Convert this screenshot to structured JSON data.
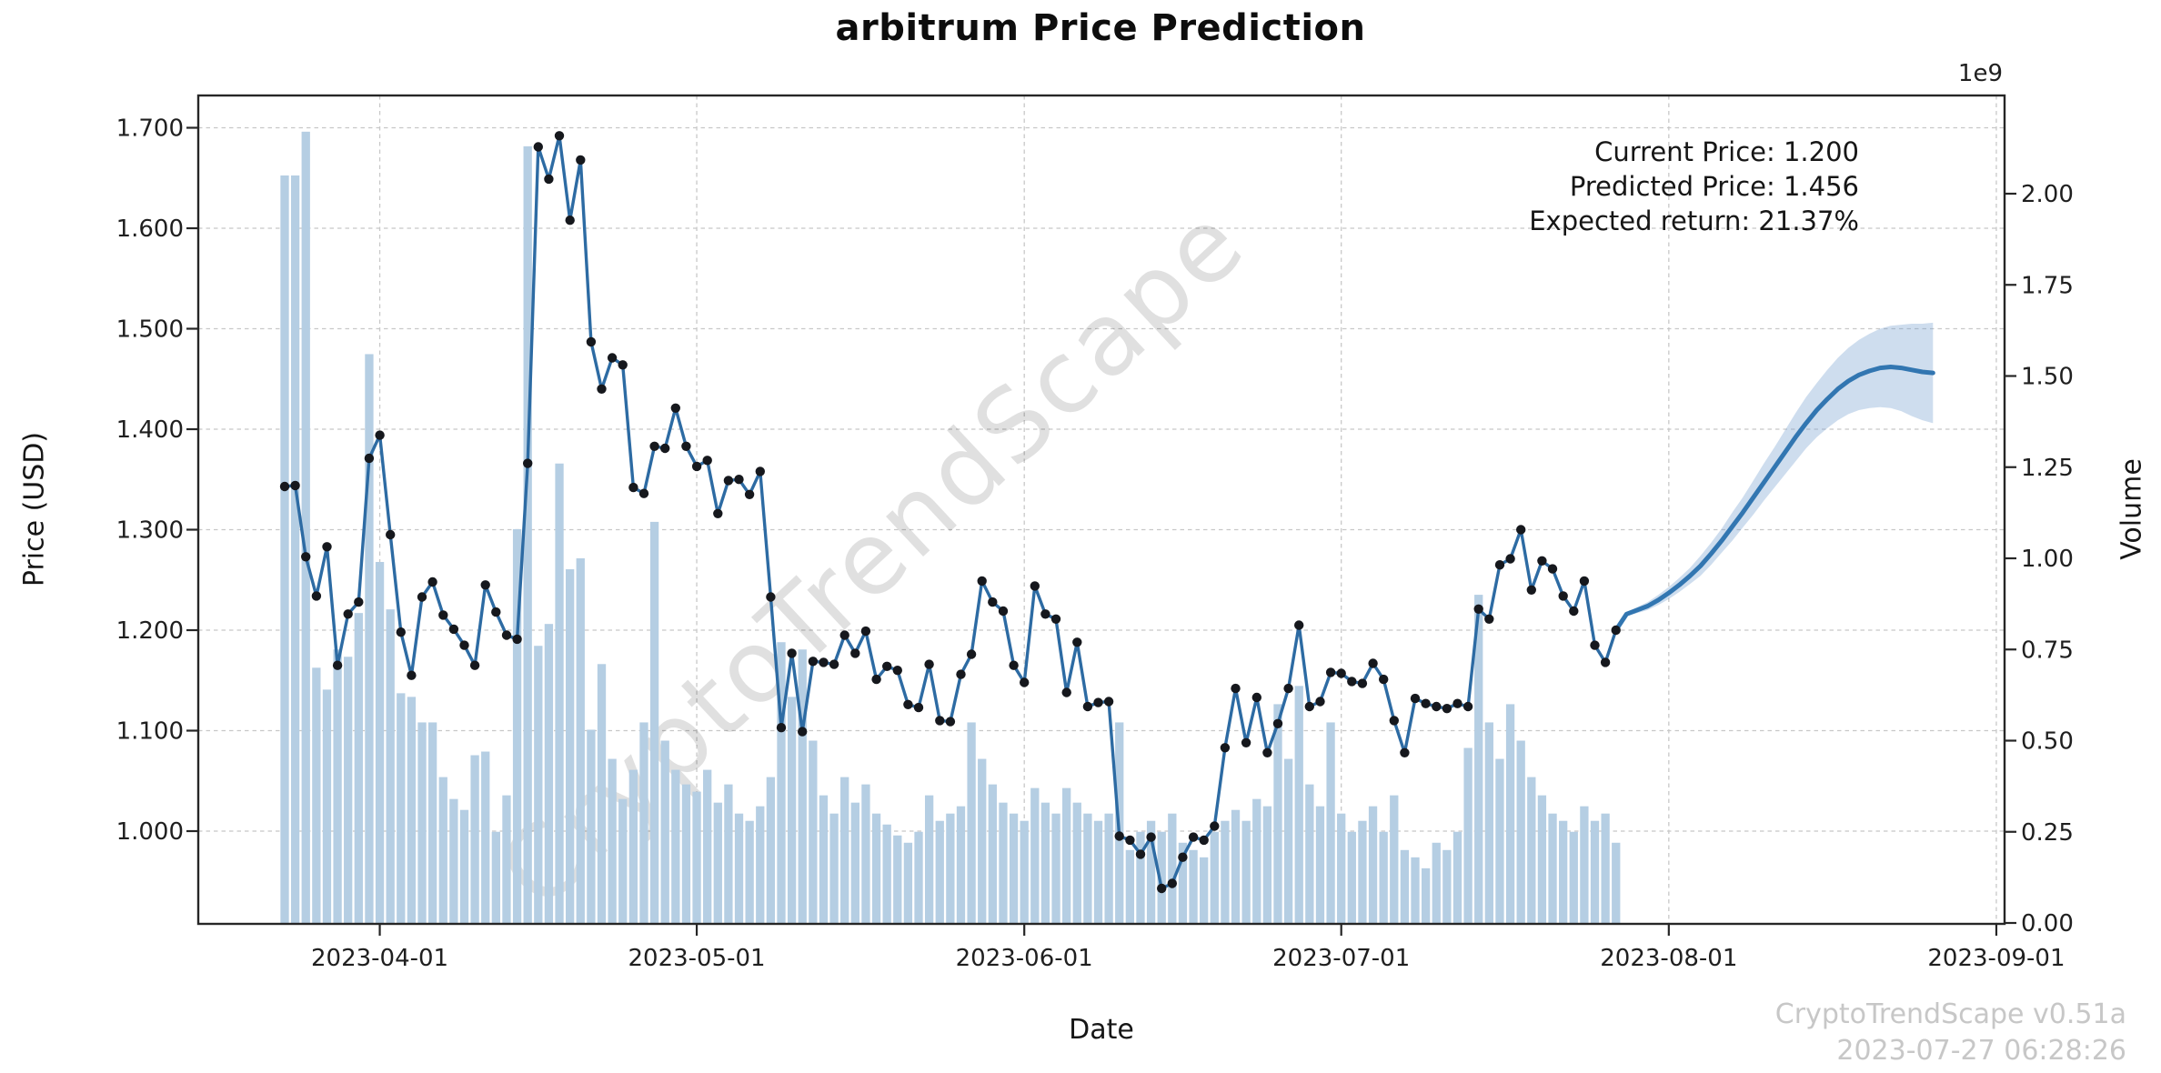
{
  "title": "arbitrum Price Prediction",
  "footer": {
    "line1": "CryptoTrendScape v0.51a",
    "line2": "2023-07-27 06:28:26"
  },
  "colors": {
    "history_line": "#2d6ba3",
    "prediction_line": "#3276b1",
    "marker": "#16181d",
    "volume_bar": "#b5cee3",
    "band_fill": "rgba(114,158,206,0.35)",
    "grid": "#c8c8c8",
    "spine": "#262626",
    "tick_label": "#1f1f1f",
    "footer_text": "#c7c7c7",
    "watermark": "rgba(0,0,0,0.12)"
  },
  "chart_data": {
    "type": "line",
    "title": "arbitrum Price Prediction",
    "xlabel": "Date",
    "ylabel_left": "Price (USD)",
    "ylabel_right": "Volume",
    "right_axis_multiplier": "1e9",
    "grid": true,
    "x_tick_labels": [
      "2023-04-01",
      "2023-05-01",
      "2023-06-01",
      "2023-07-01",
      "2023-08-01",
      "2023-09-01"
    ],
    "x_tick_day_offsets": [
      9,
      39,
      70,
      100,
      131,
      162
    ],
    "y_left_ticks": [
      1.0,
      1.1,
      1.2,
      1.3,
      1.4,
      1.5,
      1.6,
      1.7
    ],
    "y_left_tick_labels": [
      "1.000",
      "1.100",
      "1.200",
      "1.300",
      "1.400",
      "1.500",
      "1.600",
      "1.700"
    ],
    "y_right_ticks_e9": [
      0,
      0.25,
      0.5,
      0.75,
      1.0,
      1.25,
      1.5,
      1.75,
      2.0
    ],
    "y_right_tick_labels": [
      "0.00",
      "0.25",
      "0.50",
      "0.75",
      "1.00",
      "1.25",
      "1.50",
      "1.75",
      "2.00"
    ],
    "price_ylim_implied": [
      0.908,
      1.732
    ],
    "volume_ylim_e9": [
      0,
      2.27
    ],
    "annotations": [
      "Current Price: 1.200",
      "Predicted Price: 1.456",
      "Expected return: 21.37%"
    ],
    "current_price": "1.200",
    "predicted_price": "1.456",
    "expected_return": "21.37%",
    "watermark": "CryptoTrendScape",
    "series": [
      {
        "name": "historical-price",
        "kind": "line+markers",
        "axis": "left",
        "start_date": "2023-03-23",
        "freq": "daily",
        "values": [
          1.343,
          1.344,
          1.273,
          1.234,
          1.283,
          1.165,
          1.216,
          1.228,
          1.371,
          1.394,
          1.295,
          1.198,
          1.155,
          1.233,
          1.248,
          1.215,
          1.201,
          1.185,
          1.165,
          1.245,
          1.218,
          1.195,
          1.191,
          1.366,
          1.681,
          1.649,
          1.692,
          1.608,
          1.668,
          1.487,
          1.44,
          1.471,
          1.464,
          1.342,
          1.336,
          1.383,
          1.381,
          1.421,
          1.383,
          1.363,
          1.369,
          1.316,
          1.349,
          1.35,
          1.335,
          1.358,
          1.233,
          1.103,
          1.177,
          1.099,
          1.169,
          1.168,
          1.166,
          1.195,
          1.177,
          1.199,
          1.151,
          1.164,
          1.16,
          1.126,
          1.123,
          1.166,
          1.11,
          1.109,
          1.156,
          1.176,
          1.249,
          1.228,
          1.219,
          1.165,
          1.148,
          1.244,
          1.216,
          1.211,
          1.138,
          1.188,
          1.124,
          1.128,
          1.129,
          0.995,
          0.991,
          0.977,
          0.994,
          0.943,
          0.948,
          0.974,
          0.994,
          0.991,
          1.005,
          1.083,
          1.142,
          1.088,
          1.133,
          1.078,
          1.107,
          1.142,
          1.205,
          1.124,
          1.129,
          1.158,
          1.157,
          1.149,
          1.147,
          1.167,
          1.151,
          1.11,
          1.078,
          1.132,
          1.127,
          1.124,
          1.122,
          1.127,
          1.124,
          1.221,
          1.211,
          1.265,
          1.271,
          1.3,
          1.24,
          1.269,
          1.261,
          1.234,
          1.219,
          1.249,
          1.185,
          1.168,
          1.2
        ]
      },
      {
        "name": "volume",
        "kind": "bar",
        "axis": "right",
        "unit": "1e9",
        "start_date": "2023-03-23",
        "freq": "daily",
        "values": [
          2.05,
          2.05,
          2.17,
          0.7,
          0.64,
          0.75,
          0.73,
          0.85,
          1.56,
          0.99,
          0.86,
          0.63,
          0.62,
          0.55,
          0.55,
          0.4,
          0.34,
          0.31,
          0.46,
          0.47,
          0.25,
          0.35,
          1.08,
          2.13,
          0.76,
          0.82,
          1.26,
          0.97,
          1.0,
          0.53,
          0.71,
          0.45,
          0.34,
          0.42,
          0.55,
          1.1,
          0.5,
          0.42,
          0.38,
          0.36,
          0.42,
          0.33,
          0.38,
          0.3,
          0.28,
          0.32,
          0.4,
          0.77,
          0.62,
          0.75,
          0.5,
          0.35,
          0.3,
          0.4,
          0.33,
          0.38,
          0.3,
          0.27,
          0.24,
          0.22,
          0.25,
          0.35,
          0.28,
          0.3,
          0.32,
          0.55,
          0.45,
          0.38,
          0.33,
          0.3,
          0.28,
          0.37,
          0.33,
          0.3,
          0.37,
          0.33,
          0.3,
          0.28,
          0.3,
          0.55,
          0.2,
          0.25,
          0.28,
          0.25,
          0.3,
          0.22,
          0.2,
          0.18,
          0.25,
          0.28,
          0.31,
          0.28,
          0.34,
          0.32,
          0.6,
          0.45,
          0.65,
          0.38,
          0.32,
          0.55,
          0.3,
          0.25,
          0.28,
          0.32,
          0.25,
          0.35,
          0.2,
          0.18,
          0.15,
          0.22,
          0.2,
          0.25,
          0.48,
          0.9,
          0.55,
          0.45,
          0.6,
          0.5,
          0.4,
          0.35,
          0.3,
          0.28,
          0.25,
          0.32,
          0.28,
          0.3,
          0.22
        ]
      },
      {
        "name": "predicted-price",
        "kind": "line",
        "axis": "left",
        "start_date": "2023-07-27",
        "freq": "daily",
        "values": [
          1.2,
          1.216,
          1.22,
          1.224,
          1.23,
          1.237,
          1.245,
          1.254,
          1.264,
          1.276,
          1.289,
          1.303,
          1.317,
          1.332,
          1.347,
          1.362,
          1.377,
          1.392,
          1.406,
          1.419,
          1.43,
          1.44,
          1.448,
          1.454,
          1.458,
          1.461,
          1.462,
          1.461,
          1.459,
          1.457,
          1.456
        ]
      },
      {
        "name": "prediction-band-upper",
        "kind": "area-edge",
        "axis": "left",
        "start_date": "2023-07-27",
        "freq": "daily",
        "values": [
          1.202,
          1.218,
          1.223,
          1.228,
          1.235,
          1.243,
          1.252,
          1.262,
          1.274,
          1.287,
          1.301,
          1.317,
          1.332,
          1.349,
          1.366,
          1.382,
          1.399,
          1.416,
          1.432,
          1.446,
          1.459,
          1.471,
          1.481,
          1.489,
          1.495,
          1.5,
          1.503,
          1.504,
          1.505,
          1.505,
          1.506
        ]
      },
      {
        "name": "prediction-band-lower",
        "kind": "area-edge",
        "axis": "left",
        "start_date": "2023-07-27",
        "freq": "daily",
        "values": [
          1.198,
          1.214,
          1.217,
          1.22,
          1.225,
          1.231,
          1.238,
          1.246,
          1.254,
          1.265,
          1.277,
          1.289,
          1.302,
          1.315,
          1.329,
          1.342,
          1.355,
          1.368,
          1.381,
          1.392,
          1.401,
          1.409,
          1.415,
          1.419,
          1.421,
          1.422,
          1.421,
          1.418,
          1.413,
          1.409,
          1.406
        ]
      }
    ]
  }
}
